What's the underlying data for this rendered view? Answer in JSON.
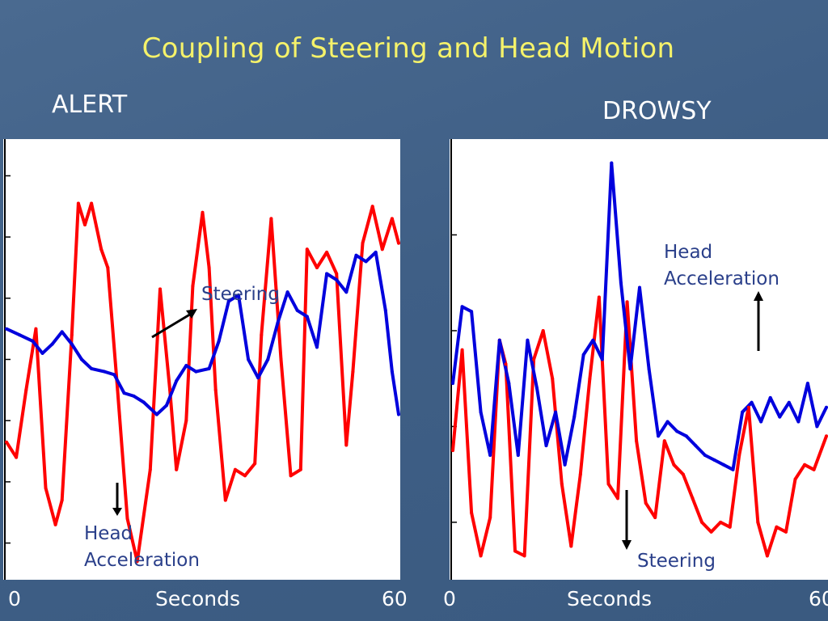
{
  "slide": {
    "title": "Coupling of Steering and Head Motion"
  },
  "colors": {
    "background": "#44648c",
    "title": "#f5f26a",
    "steering": "#ff0000",
    "head_acceleration": "#0000dd",
    "annotation_text": "#2a3f8a"
  },
  "chart_data": [
    {
      "type": "line",
      "title": "ALERT",
      "xlabel": "Seconds",
      "x_ticks": [
        "0",
        "60"
      ],
      "xlim": [
        0,
        60
      ],
      "grid": false,
      "annotations": [
        {
          "text": "Steering",
          "target_series": "Steering",
          "arrow": "up-right"
        },
        {
          "text": "Head\nAcceleration",
          "target_series": "Head Acceleration",
          "arrow": "down"
        }
      ],
      "series": [
        {
          "name": "Steering",
          "color": "#ff0000",
          "x": [
            0,
            1.5,
            3,
            4.5,
            6,
            7.5,
            8.5,
            10,
            11,
            12,
            13,
            14.5,
            15.5,
            17,
            18.5,
            20,
            22,
            23.5,
            25,
            26,
            27.5,
            28.5,
            30,
            31,
            32,
            33.5,
            35,
            36.5,
            38,
            39,
            40.5,
            42,
            43.5,
            45,
            46,
            47.5,
            49,
            50.5,
            52,
            53,
            54.5,
            56,
            57.5,
            59,
            60
          ],
          "values": [
            -1.35,
            -1.6,
            -0.5,
            0.5,
            -2.1,
            -2.7,
            -2.3,
            0.4,
            2.55,
            2.2,
            2.55,
            1.8,
            1.5,
            -0.5,
            -2.6,
            -3.3,
            -1.8,
            1.15,
            -0.5,
            -1.8,
            -1.0,
            1.2,
            2.4,
            1.5,
            -0.5,
            -2.3,
            -1.8,
            -1.9,
            -1.7,
            0.4,
            2.3,
            0.0,
            -1.9,
            -1.8,
            1.8,
            1.5,
            1.75,
            1.4,
            -1.4,
            -0.2,
            1.9,
            2.5,
            1.8,
            2.3,
            1.9
          ]
        },
        {
          "name": "Head Acceleration",
          "color": "#0000dd",
          "x": [
            0,
            2,
            4,
            5.5,
            7,
            8.5,
            10,
            11.5,
            13,
            15,
            16.5,
            18,
            19.5,
            21,
            23,
            24.5,
            26,
            27.5,
            29,
            31,
            32.5,
            34,
            35.5,
            37,
            38.5,
            40,
            41.5,
            43,
            44.5,
            46,
            47.5,
            49,
            50.5,
            52,
            53.5,
            55,
            56.5,
            58,
            59,
            60
          ],
          "values": [
            0.5,
            0.4,
            0.3,
            0.1,
            0.25,
            0.45,
            0.25,
            0.0,
            -0.15,
            -0.2,
            -0.25,
            -0.55,
            -0.6,
            -0.7,
            -0.9,
            -0.75,
            -0.35,
            -0.1,
            -0.2,
            -0.15,
            0.3,
            0.95,
            1.05,
            0.0,
            -0.3,
            0.0,
            0.6,
            1.1,
            0.8,
            0.7,
            0.2,
            1.4,
            1.3,
            1.1,
            1.7,
            1.6,
            1.75,
            0.8,
            -0.2,
            -0.9
          ]
        }
      ]
    },
    {
      "type": "line",
      "title": "DROWSY",
      "xlabel": "Seconds",
      "x_ticks": [
        "0",
        "60"
      ],
      "xlim": [
        0,
        60
      ],
      "grid": false,
      "annotations": [
        {
          "text": "Head\nAcceleration",
          "target_series": "Head Acceleration",
          "arrow": "up"
        },
        {
          "text": "Steering",
          "target_series": "Steering",
          "arrow": "down"
        }
      ],
      "series": [
        {
          "name": "Steering",
          "color": "#ff0000",
          "x": [
            0,
            1.5,
            3,
            4.5,
            6,
            7.5,
            8.5,
            10,
            11.5,
            13,
            14.5,
            16,
            17.5,
            19,
            20.5,
            22,
            23.5,
            25,
            26.5,
            28,
            29.5,
            31,
            32.5,
            34,
            35.5,
            37,
            38.5,
            40,
            41.5,
            43,
            44.5,
            46,
            47.5,
            49,
            50.5,
            52,
            53.5,
            55,
            56.5,
            58,
            60
          ],
          "values": [
            -0.5,
            1.6,
            -1.8,
            -2.7,
            -1.9,
            1.8,
            1.3,
            -2.6,
            -2.7,
            1.4,
            2.0,
            1.0,
            -1.2,
            -2.5,
            -1.0,
            1.0,
            2.7,
            -1.2,
            -1.5,
            2.6,
            -0.3,
            -1.6,
            -1.9,
            -0.3,
            -0.8,
            -1.0,
            -1.5,
            -2.0,
            -2.2,
            -2.0,
            -2.1,
            -0.6,
            0.4,
            -2.0,
            -2.7,
            -2.1,
            -2.2,
            -1.1,
            -0.8,
            -0.9,
            -0.2
          ]
        },
        {
          "name": "Head Acceleration",
          "color": "#0000dd",
          "x": [
            0,
            1.5,
            3,
            4.5,
            6,
            7.5,
            9,
            10.5,
            12,
            13.5,
            15,
            16.5,
            18,
            19.5,
            21,
            22.5,
            24,
            25.5,
            27,
            28.5,
            30,
            31.5,
            33,
            34.5,
            36,
            37.5,
            39,
            40.5,
            42,
            43.5,
            45,
            46.5,
            48,
            49.5,
            51,
            52.5,
            54,
            55.5,
            57,
            58.5,
            60
          ],
          "values": [
            0.9,
            2.5,
            2.4,
            0.3,
            -0.6,
            1.8,
            0.9,
            -0.6,
            1.8,
            0.8,
            -0.4,
            0.3,
            -0.8,
            0.2,
            1.5,
            1.8,
            1.4,
            5.5,
            3.0,
            1.2,
            2.9,
            1.2,
            -0.2,
            0.1,
            -0.1,
            -0.2,
            -0.4,
            -0.6,
            -0.7,
            -0.8,
            -0.9,
            0.3,
            0.5,
            0.1,
            0.6,
            0.2,
            0.5,
            0.1,
            0.9,
            0.0,
            0.4
          ]
        }
      ]
    }
  ]
}
